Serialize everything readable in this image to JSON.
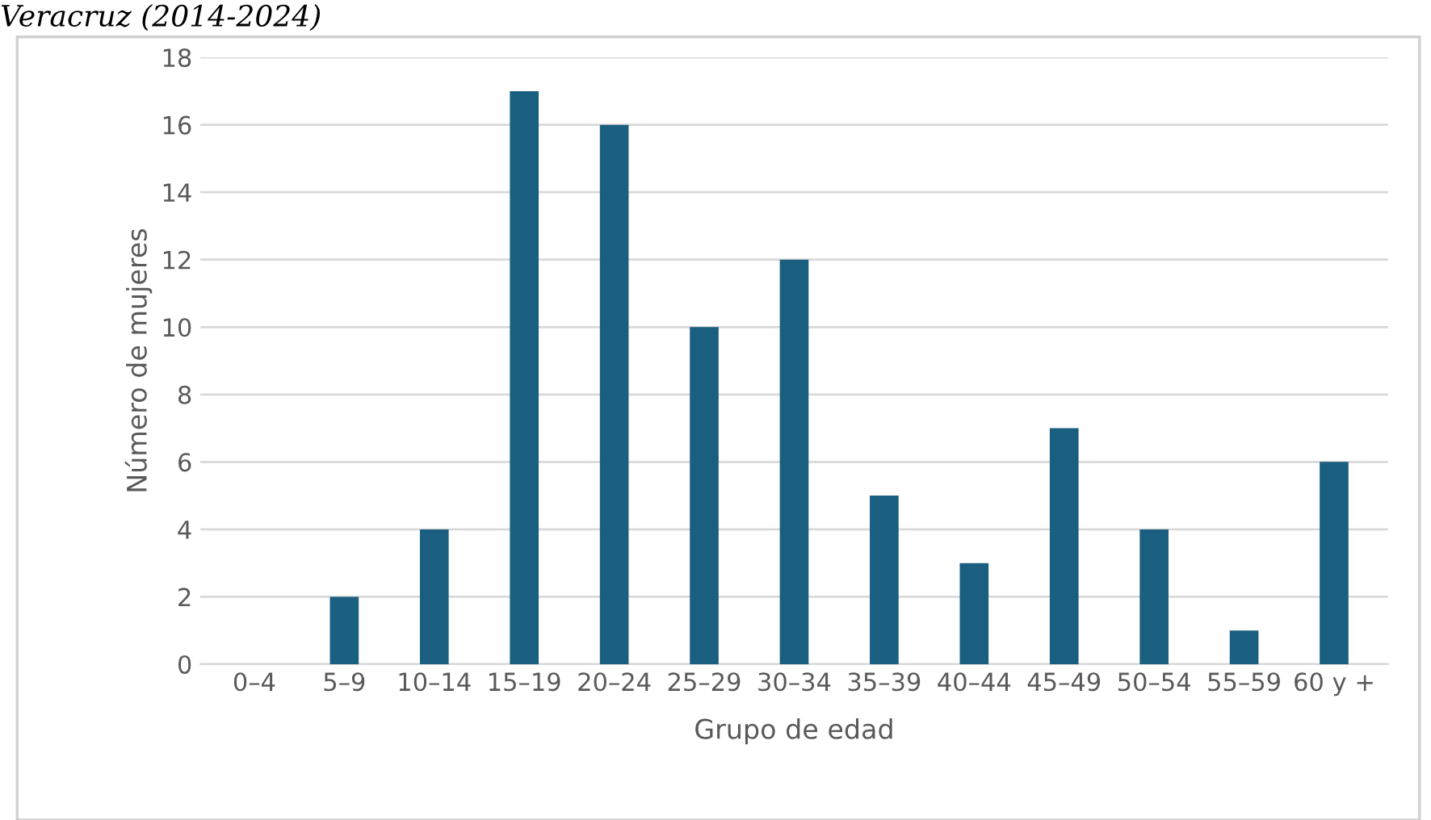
{
  "chart_data": {
    "type": "bar",
    "title": "Veracruz (2014-2024)",
    "xlabel": "Grupo de edad",
    "ylabel": "Número de mujeres",
    "categories": [
      "0–4",
      "5–9",
      "10–14",
      "15–19",
      "20–24",
      "25–29",
      "30–34",
      "35–39",
      "40–44",
      "45–49",
      "50–54",
      "55–59",
      "60 y +"
    ],
    "values": [
      0,
      2,
      4,
      17,
      16,
      10,
      12,
      5,
      3,
      7,
      4,
      1,
      6
    ],
    "color": "#1a5e80",
    "ylim": [
      0,
      18
    ],
    "yticks": [
      0,
      2,
      4,
      6,
      8,
      10,
      12,
      14,
      16,
      18
    ],
    "grid": "y"
  }
}
